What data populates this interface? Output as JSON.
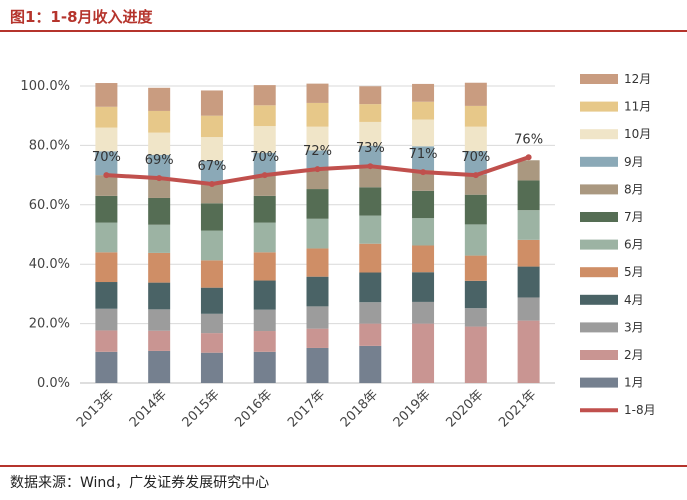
{
  "title": "图1：1-8月收入进度",
  "source": "数据来源：Wind，广发证券发展研究中心",
  "chart_data": {
    "type": "bar",
    "stacked": true,
    "categories": [
      "2013年",
      "2014年",
      "2015年",
      "2016年",
      "2017年",
      "2018年",
      "2019年",
      "2020年",
      "2021年"
    ],
    "ylim": [
      0,
      1.0
    ],
    "yticks": [
      0,
      0.2,
      0.4,
      0.6,
      0.8,
      1.0
    ],
    "ytick_labels": [
      "0.0%",
      "20.0%",
      "40.0%",
      "60.0%",
      "80.0%",
      "100.0%"
    ],
    "grid": true,
    "legend_position": "right",
    "series": [
      {
        "name": "1月",
        "color": "#75808f",
        "values": [
          0.105,
          0.108,
          0.102,
          0.105,
          0.118,
          0.125,
          0.0,
          0.0,
          0.0
        ]
      },
      {
        "name": "2月",
        "color": "#c99592",
        "values": [
          0.072,
          0.068,
          0.066,
          0.07,
          0.065,
          0.075,
          0.2,
          0.19,
          0.21
        ]
      },
      {
        "name": "3月",
        "color": "#9c9c9c",
        "values": [
          0.073,
          0.072,
          0.065,
          0.072,
          0.075,
          0.072,
          0.073,
          0.062,
          0.078
        ]
      },
      {
        "name": "4月",
        "color": "#4a6366",
        "values": [
          0.09,
          0.09,
          0.088,
          0.098,
          0.1,
          0.1,
          0.1,
          0.092,
          0.104
        ]
      },
      {
        "name": "5月",
        "color": "#cf8e66",
        "values": [
          0.1,
          0.1,
          0.092,
          0.095,
          0.095,
          0.097,
          0.09,
          0.085,
          0.09
        ]
      },
      {
        "name": "6月",
        "color": "#9cb3a3",
        "values": [
          0.1,
          0.095,
          0.1,
          0.1,
          0.1,
          0.095,
          0.092,
          0.105,
          0.1
        ]
      },
      {
        "name": "7月",
        "color": "#556d54",
        "values": [
          0.09,
          0.09,
          0.092,
          0.09,
          0.1,
          0.095,
          0.092,
          0.1,
          0.1
        ]
      },
      {
        "name": "8月",
        "color": "#aa9880",
        "values": [
          0.07,
          0.07,
          0.065,
          0.07,
          0.07,
          0.07,
          0.07,
          0.067,
          0.068
        ]
      },
      {
        "name": "9月",
        "color": "#8ba9b7",
        "values": [
          0.08,
          0.075,
          0.078,
          0.075,
          0.06,
          0.07,
          0.08,
          0.08,
          0.0
        ]
      },
      {
        "name": "10月",
        "color": "#f0e5c8",
        "values": [
          0.08,
          0.075,
          0.08,
          0.09,
          0.08,
          0.08,
          0.09,
          0.082,
          0.0
        ]
      },
      {
        "name": "11月",
        "color": "#e7c889",
        "values": [
          0.07,
          0.073,
          0.072,
          0.07,
          0.08,
          0.06,
          0.06,
          0.07,
          0.0
        ]
      },
      {
        "name": "12月",
        "color": "#c99c80",
        "values": [
          0.08,
          0.078,
          0.085,
          0.068,
          0.065,
          0.06,
          0.06,
          0.078,
          0.0
        ]
      }
    ],
    "line_series": {
      "name": "1-8月",
      "color": "#c0504d",
      "values": [
        0.7,
        0.69,
        0.67,
        0.7,
        0.72,
        0.73,
        0.71,
        0.7,
        0.76
      ],
      "labels": [
        "70%",
        "69%",
        "67%",
        "70%",
        "72%",
        "73%",
        "71%",
        "70%",
        "76%"
      ]
    }
  }
}
